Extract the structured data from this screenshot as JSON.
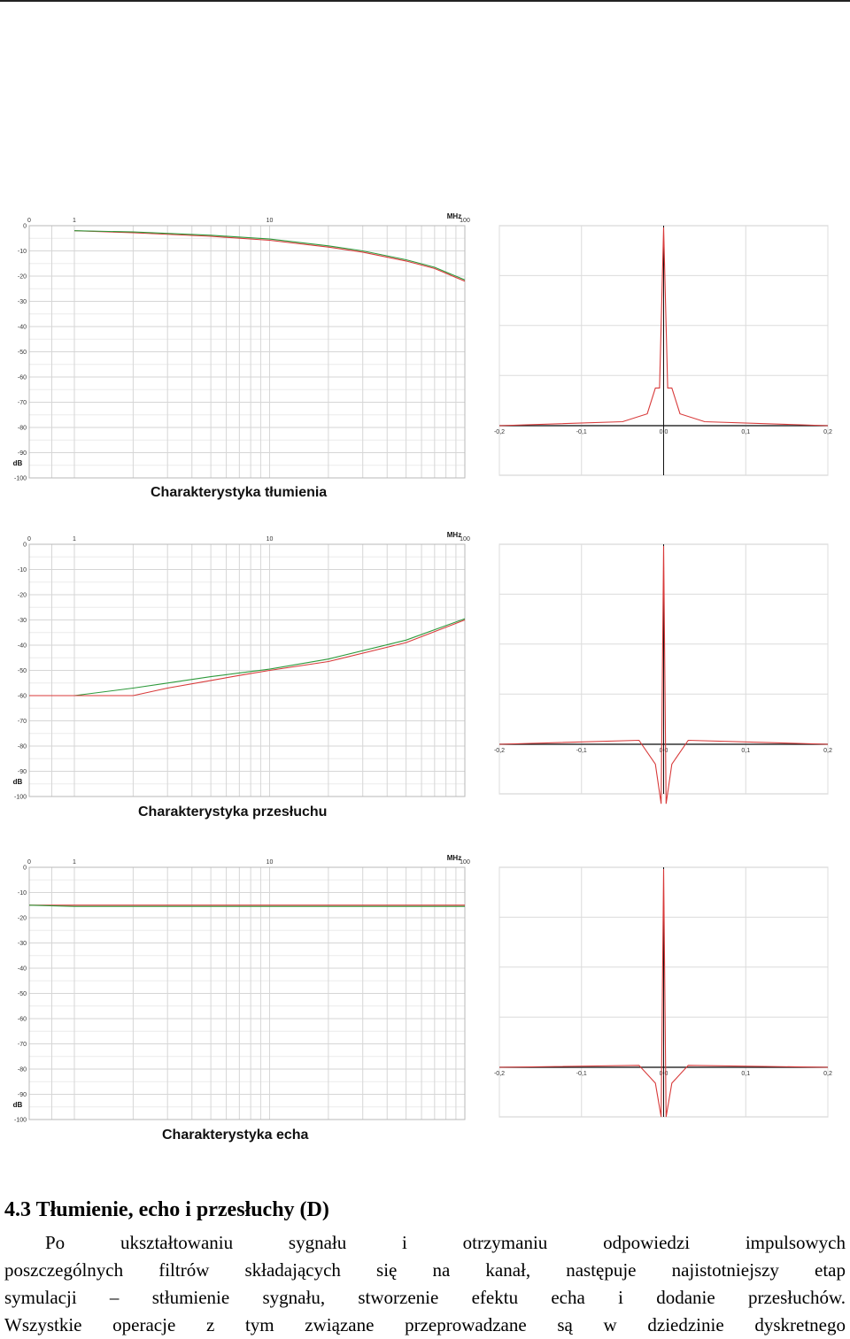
{
  "charts_common": {
    "freq_unit": "MHz",
    "db_unit": "dB",
    "freq_ticks": [
      "0",
      "1",
      "10",
      "100"
    ],
    "db_ticks": [
      "0",
      "-10",
      "-20",
      "-30",
      "-40",
      "-50",
      "-60",
      "-70",
      "-80",
      "-90",
      "-100"
    ],
    "time_ticks": [
      "-0,2",
      "-0,1",
      "0,0",
      "0,1",
      "0,2"
    ]
  },
  "panels": {
    "attenuation": {
      "title": "Charakterystyka tłumienia"
    },
    "crosstalk": {
      "title": "Charakterystyka przesłuchu"
    },
    "echo": {
      "title": "Charakterystyka echa"
    }
  },
  "chart_data": [
    {
      "type": "line",
      "title": "Charakterystyka tłumienia",
      "xlabel": "MHz",
      "ylabel": "dB",
      "xscale": "log",
      "xlim": [
        0,
        100
      ],
      "ylim": [
        -100,
        0
      ],
      "series": [
        {
          "x": [
            1,
            2,
            5,
            10,
            20,
            30,
            50,
            70,
            100
          ],
          "y": [
            -2,
            -2.8,
            -4.2,
            -5.8,
            -8.5,
            -10.5,
            -14,
            -17,
            -22
          ]
        },
        {
          "x": [
            1,
            2,
            5,
            10,
            20,
            30,
            50,
            70,
            100
          ],
          "y": [
            -2,
            -2.5,
            -3.8,
            -5.3,
            -8,
            -10,
            -13.5,
            -16.5,
            -21.5
          ]
        }
      ],
      "colors": [
        "#d83a3a",
        "#2e9a3c"
      ]
    },
    {
      "type": "line",
      "title": "",
      "xlim": [
        -0.2,
        0.2
      ],
      "ylim": [
        -1,
        1
      ],
      "series": [
        {
          "x": [
            -0.2,
            -0.05,
            -0.02,
            -0.01,
            -0.005,
            0,
            0.005,
            0.01,
            0.02,
            0.05,
            0.2
          ],
          "y": [
            0,
            0.02,
            0.06,
            0.19,
            0.19,
            1,
            0.19,
            0.19,
            0.06,
            0.02,
            0
          ]
        }
      ],
      "colors": [
        "#d83a3a"
      ]
    },
    {
      "type": "line",
      "title": "Charakterystyka przesłuchu",
      "xlabel": "MHz",
      "ylabel": "dB",
      "xscale": "log",
      "xlim": [
        0,
        100
      ],
      "ylim": [
        -100,
        0
      ],
      "series": [
        {
          "x": [
            0,
            1,
            2,
            3,
            5,
            7,
            10,
            20,
            50,
            100
          ],
          "y": [
            -60,
            -60,
            -57,
            -55,
            -52.5,
            -51,
            -49.5,
            -45.5,
            -38,
            -29.5
          ]
        },
        {
          "x": [
            0,
            1,
            2,
            3,
            5,
            7,
            10,
            20,
            50,
            100
          ],
          "y": [
            -60,
            -60,
            -60,
            -57,
            -54,
            -52,
            -50,
            -46.5,
            -39,
            -30
          ]
        }
      ],
      "colors": [
        "#2e9a3c",
        "#d83a3a"
      ]
    },
    {
      "type": "line",
      "title": "",
      "xlim": [
        -0.2,
        0.2
      ],
      "ylim": [
        -1,
        1
      ],
      "series": [
        {
          "x": [
            -0.2,
            -0.03,
            -0.01,
            -0.003,
            0,
            0.003,
            0.01,
            0.03,
            0.2
          ],
          "y": [
            0,
            0.02,
            -0.1,
            -0.3,
            1,
            -0.3,
            -0.1,
            0.02,
            0
          ]
        }
      ],
      "colors": [
        "#d83a3a"
      ]
    },
    {
      "type": "line",
      "title": "Charakterystyka echa",
      "xlabel": "MHz",
      "ylabel": "dB",
      "xscale": "log",
      "xlim": [
        0,
        100
      ],
      "ylim": [
        -100,
        0
      ],
      "series": [
        {
          "x": [
            0,
            1,
            100
          ],
          "y": [
            -15,
            -15,
            -15
          ]
        },
        {
          "x": [
            0,
            1,
            100
          ],
          "y": [
            -15,
            -15.5,
            -15.5
          ]
        }
      ],
      "colors": [
        "#d83a3a",
        "#2e9a3c"
      ]
    },
    {
      "type": "line",
      "title": "",
      "xlim": [
        -0.2,
        0.2
      ],
      "ylim": [
        -1,
        1
      ],
      "series": [
        {
          "x": [
            -0.2,
            -0.03,
            -0.01,
            -0.003,
            0,
            0.003,
            0.01,
            0.03,
            0.2
          ],
          "y": [
            0,
            0.01,
            -0.08,
            -0.25,
            1,
            -0.25,
            -0.08,
            0.01,
            0
          ]
        }
      ],
      "colors": [
        "#d83a3a"
      ]
    }
  ],
  "section": {
    "heading": "4.3 Tłumienie, echo i przesłuchy (D)",
    "paragraph_lines": [
      "Po ukształtowaniu sygnału i otrzymaniu odpowiedzi impulsowych",
      "poszczególnych filtrów składających się na kanał, następuje najistotniejszy etap",
      "symulacji – stłumienie sygnału, stworzenie efektu echa i dodanie przesłuchów.",
      "Wszystkie operacje z tym związane przeprowadzane są w dziedzinie dyskretnego"
    ]
  }
}
